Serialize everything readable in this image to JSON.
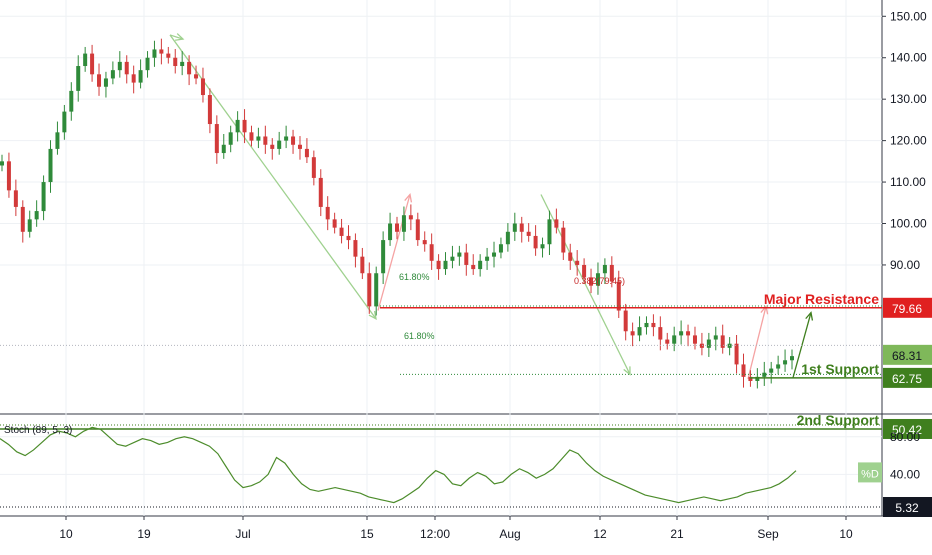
{
  "chart_data": [
    {
      "type": "candlestick",
      "ylim": [
        55,
        152
      ],
      "y_ticks": [
        "150.00",
        "140.00",
        "130.00",
        "120.00",
        "110.00",
        "100.00",
        "90.00"
      ],
      "y_tick_values": [
        150,
        140,
        130,
        120,
        110,
        100,
        90
      ],
      "x_ticks": [
        "10",
        "19",
        "Jul",
        "15",
        "12:00",
        "Aug",
        "12",
        "21",
        "Sep",
        "10"
      ],
      "grid": true,
      "close_series": [
        115,
        108,
        104,
        98,
        101,
        103,
        110,
        118,
        122,
        127,
        132,
        138,
        141,
        136,
        133,
        135,
        137,
        139,
        136,
        134,
        137,
        140,
        142,
        141,
        140,
        138,
        139,
        136,
        135,
        131,
        124,
        117,
        119,
        122,
        125,
        122,
        120,
        121,
        119,
        118,
        120,
        121,
        119,
        118,
        116,
        111,
        104,
        101,
        99,
        97,
        96,
        92,
        88,
        80,
        88,
        96,
        100,
        98,
        102,
        101,
        96,
        95,
        91,
        89,
        91,
        92,
        93,
        90,
        89,
        91,
        92,
        93,
        95,
        98,
        100,
        98,
        97,
        94,
        95,
        101,
        99,
        93,
        91,
        90,
        87,
        85,
        88,
        90,
        86,
        79,
        74,
        73,
        75,
        76,
        75,
        72,
        71,
        73,
        74,
        73,
        71,
        70,
        72,
        73,
        70,
        71,
        66,
        63,
        62,
        63,
        64,
        65,
        66,
        67,
        68
      ],
      "price_lines": [
        {
          "price": 79.66,
          "label": "Major Resistance",
          "value_label": "79.66",
          "color": "#e02020"
        },
        {
          "price": 62.75,
          "label": "1st Support",
          "value_label": "62.75",
          "color": "#3f7f1e"
        },
        {
          "price": 50.42,
          "label": "2nd Support",
          "value_label": "50.42",
          "color": "#3f7f1e"
        }
      ],
      "last_price_label": "68.31",
      "annotations": [
        "61.80%",
        "0.382(79.45)",
        "61.80%"
      ],
      "indicator": {
        "name": "Stoch (89, 5, 3)",
        "ylim": [
          0,
          100
        ],
        "y_ticks": [
          "80.00",
          "40.00"
        ],
        "y_tick_values": [
          80,
          40
        ],
        "last_value_label": "5.32",
        "series_label": "%D",
        "values": [
          78,
          72,
          64,
          60,
          66,
          74,
          82,
          86,
          84,
          80,
          86,
          90,
          88,
          80,
          72,
          70,
          74,
          78,
          76,
          72,
          74,
          78,
          80,
          78,
          74,
          70,
          62,
          48,
          34,
          26,
          28,
          32,
          40,
          58,
          52,
          40,
          30,
          24,
          22,
          24,
          26,
          24,
          22,
          20,
          16,
          14,
          12,
          10,
          14,
          20,
          26,
          36,
          44,
          40,
          30,
          28,
          36,
          42,
          38,
          30,
          32,
          40,
          46,
          42,
          36,
          40,
          46,
          56,
          66,
          62,
          52,
          44,
          38,
          34,
          30,
          26,
          22,
          18,
          16,
          14,
          12,
          10,
          12,
          14,
          16,
          14,
          12,
          14,
          16,
          20,
          22,
          24,
          26,
          30,
          36,
          44
        ]
      },
      "colors": {
        "up": "#2f8a3a",
        "down": "#d23a3a",
        "grid": "#eef1f4"
      }
    }
  ]
}
